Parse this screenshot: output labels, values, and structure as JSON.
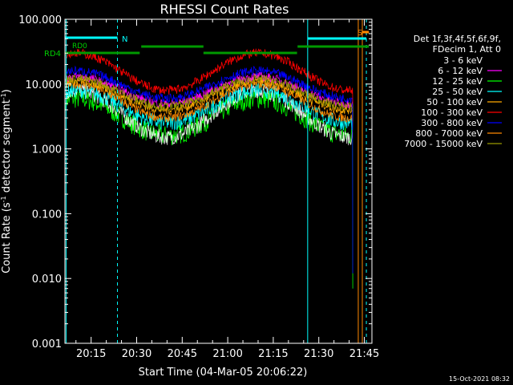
{
  "chart_data": {
    "type": "line",
    "title": "RHESSI Count Rates",
    "xlabel": "Start Time (04-Mar-05 20:06:22)",
    "ylabel": "Count Rate (s⁻¹ detector segment⁻¹)",
    "ylabel_main": "Count Rate (s",
    "ylabel_mid": " detector segment",
    "ylabel_end": ")",
    "ylabel_sup": "-1",
    "y_scale": "log",
    "ylim": [
      0.001,
      100
    ],
    "xlim": [
      "20:06:22",
      "21:47:30"
    ],
    "yticks": [
      "0.001",
      "0.010",
      "0.100",
      "1.000",
      "10.000",
      "100.000"
    ],
    "xticks": [
      "20:15",
      "20:30",
      "20:45",
      "21:00",
      "21:15",
      "21:30",
      "21:45"
    ],
    "legend_header": [
      "Det 1f,3f,4f,5f,6f,9f,",
      "FDecim 1, Att 0"
    ],
    "legend_placement": "right",
    "series": [
      {
        "name": "3 - 6 keV",
        "color": "#000000",
        "peak": 8.0,
        "trough": 1.5
      },
      {
        "name": "6 - 12 keV",
        "color": "#ff00ff",
        "peak": 13.0,
        "trough": 5.0
      },
      {
        "name": "12 - 25 keV",
        "color": "#00ff00",
        "peak": 6.0,
        "trough": 1.6
      },
      {
        "name": "25 - 50 keV",
        "color": "#00ffff",
        "peak": 8.0,
        "trough": 2.5
      },
      {
        "name": "50 - 100 keV",
        "color": "#ffaa00",
        "peak": 11.0,
        "trough": 4.0
      },
      {
        "name": "100 - 300 keV",
        "color": "#ff0000",
        "peak": 30.0,
        "trough": 8.0
      },
      {
        "name": "300 - 800 keV",
        "color": "#0000ff",
        "peak": 16.0,
        "trough": 6.0
      },
      {
        "name": "800 - 7000 keV",
        "color": "#ff8800",
        "peak": 10.0,
        "trough": 3.0
      },
      {
        "name": "7000 - 15000 keV",
        "color": "#999900",
        "peak": 12.0,
        "trough": 4.5
      }
    ],
    "annotations": [
      {
        "text": "RD0",
        "color": "#00cc00"
      },
      {
        "text": "RD4",
        "color": "#00cc00"
      },
      {
        "text": "N",
        "color": "#00ffff"
      },
      {
        "text": "S",
        "color": "#ff8800"
      }
    ],
    "footer_date": "15-Oct-2021 08:32"
  }
}
